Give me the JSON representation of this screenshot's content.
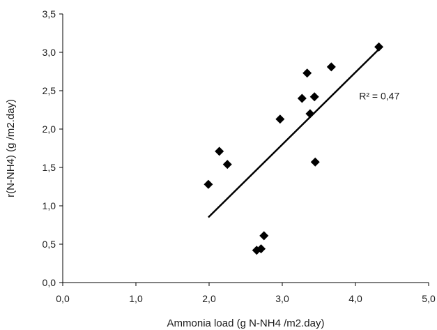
{
  "chart_data": {
    "type": "scatter",
    "title": "",
    "xlabel": "Ammonia load (g N-NH4 /m2.day)",
    "ylabel": "r(N-NH4) (g /m2.day)",
    "xlim": [
      0,
      5
    ],
    "ylim": [
      0,
      3.5
    ],
    "x_ticks": [
      "0,0",
      "1,0",
      "2,0",
      "3,0",
      "4,0",
      "5,0"
    ],
    "y_ticks": [
      "0,0",
      "0,5",
      "1,0",
      "1,5",
      "2,0",
      "2,5",
      "3,0",
      "3,5"
    ],
    "grid": false,
    "legend": "none",
    "marker": "diamond",
    "marker_color": "#000000",
    "series": [
      {
        "x": [
          1.99,
          2.14,
          2.25,
          2.65,
          2.71,
          2.75,
          2.97,
          3.27,
          3.34,
          3.38,
          3.44,
          3.45,
          3.67,
          4.32
        ],
        "y": [
          1.28,
          1.71,
          1.54,
          0.42,
          0.44,
          0.61,
          2.13,
          2.4,
          2.73,
          2.2,
          2.42,
          1.57,
          2.81,
          3.07
        ]
      }
    ],
    "trendline": {
      "type": "linear",
      "x_start": 1.99,
      "y_start": 0.85,
      "x_end": 4.32,
      "y_end": 3.04,
      "color": "#000000"
    },
    "annotation": {
      "text": "R² = 0,47",
      "x": 4.05,
      "y": 2.43
    }
  }
}
